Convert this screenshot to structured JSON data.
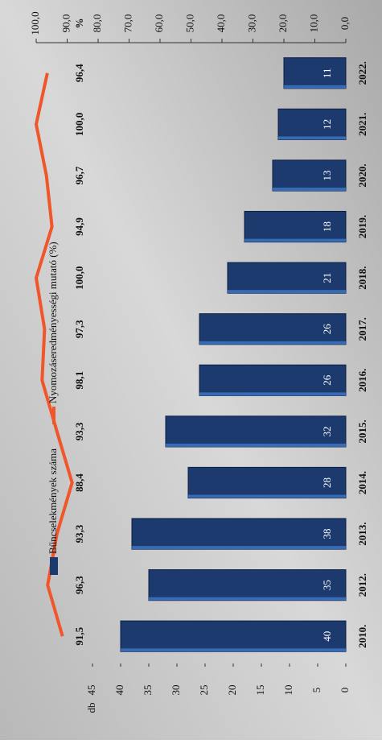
{
  "chart_data": {
    "type": "bar",
    "ylabel": "db",
    "y2label": "%",
    "categories": [
      "2010.",
      "2012.",
      "2013.",
      "2014.",
      "2015.",
      "2016.",
      "2017.",
      "2018.",
      "2019.",
      "2020.",
      "2021.",
      "2022."
    ],
    "series": [
      {
        "name": "Bűncselekmények száma",
        "color": "#1c3a6e",
        "values": [
          40,
          35,
          38,
          28,
          32,
          26,
          26,
          21,
          18,
          13,
          12,
          11
        ]
      },
      {
        "name": "Nyomozáseredményességi mutató (%)",
        "color": "#f0562a",
        "axis": "y2",
        "values": [
          91.5,
          96.3,
          93.3,
          88.4,
          93.3,
          98.1,
          97.3,
          100.0,
          94.9,
          96.7,
          100.0,
          96.4
        ],
        "value_labels": [
          "91,5",
          "96,3",
          "93,3",
          "88,4",
          "93,3",
          "98,1",
          "97,3",
          "100,0",
          "94,9",
          "96,7",
          "100,0",
          "96,4"
        ]
      }
    ],
    "ylim": [
      0,
      55
    ],
    "yticks": [
      0,
      5,
      10,
      15,
      20,
      25,
      30,
      35,
      40,
      45
    ],
    "y2lim": [
      0,
      100
    ],
    "y2ticks": [
      {
        "value": 0,
        "label": "0,0"
      },
      {
        "value": 10,
        "label": "10,0"
      },
      {
        "value": 20,
        "label": "20,0"
      },
      {
        "value": 30,
        "label": "30,0"
      },
      {
        "value": 40,
        "label": "40,0"
      },
      {
        "value": 50,
        "label": "50,0"
      },
      {
        "value": 60,
        "label": "60,0"
      },
      {
        "value": 70,
        "label": "70,0"
      },
      {
        "value": 80,
        "label": "80,0"
      },
      {
        "value": 90,
        "label": "90,0"
      },
      {
        "value": 100,
        "label": "100,0"
      }
    ],
    "legend": "top"
  }
}
